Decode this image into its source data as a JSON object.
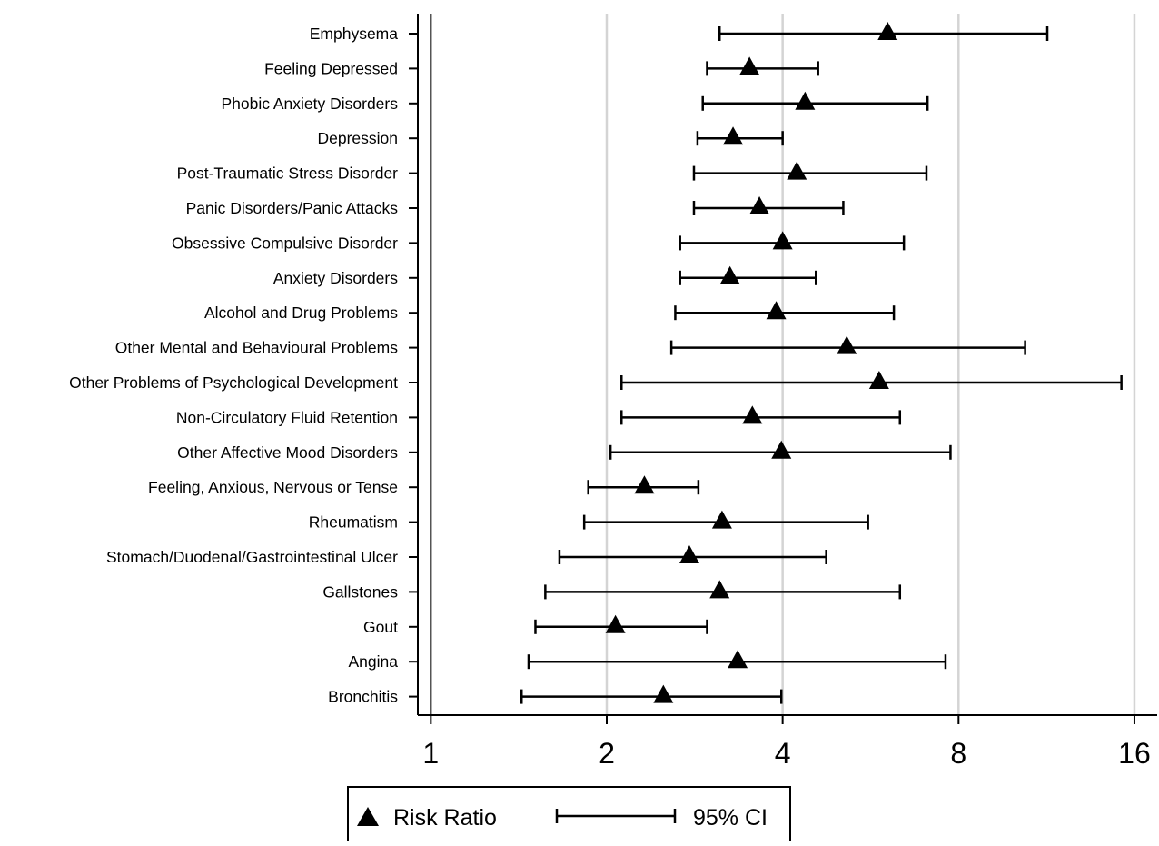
{
  "chart_data": {
    "type": "forest",
    "xscale": "log2",
    "xlim": [
      0.95,
      17.5
    ],
    "xticks": [
      1,
      2,
      4,
      8,
      16
    ],
    "xtick_labels": [
      "1",
      "2",
      "4",
      "8",
      "16"
    ],
    "reference_line": 1,
    "grid": true,
    "legend": {
      "placement": "bottom-left",
      "items": [
        {
          "label": "Risk Ratio",
          "marker": "triangle"
        },
        {
          "label": "95% CI",
          "marker": "errorbar"
        }
      ]
    },
    "series": [
      {
        "name": "Risk Ratio",
        "kind": "point"
      },
      {
        "name": "95% CI",
        "kind": "interval"
      }
    ],
    "categories": [
      "Emphysema",
      "Feeling Depressed",
      "Phobic Anxiety Disorders",
      "Depression",
      "Post-Traumatic Stress Disorder",
      "Panic Disorders/Panic Attacks",
      "Obsessive Compulsive Disorder",
      "Anxiety Disorders",
      "Alcohol and Drug Problems",
      "Other Mental and Behavioural Problems",
      "Other Problems of Psychological Development",
      "Non-Circulatory Fluid Retention",
      "Other Affective Mood Disorders",
      "Feeling, Anxious, Nervous or Tense",
      "Rheumatism",
      "Stomach/Duodenal/Gastrointestinal Ulcer",
      "Gallstones",
      "Gout",
      "Angina",
      "Bronchitis"
    ],
    "estimates": [
      6.05,
      3.51,
      4.37,
      3.29,
      4.23,
      3.65,
      4.0,
      3.25,
      3.9,
      5.15,
      5.85,
      3.55,
      3.98,
      2.32,
      3.15,
      2.77,
      3.12,
      2.07,
      3.35,
      2.5
    ],
    "ci_lower": [
      3.12,
      2.97,
      2.92,
      2.86,
      2.82,
      2.82,
      2.67,
      2.67,
      2.62,
      2.58,
      2.12,
      2.12,
      2.03,
      1.86,
      1.83,
      1.66,
      1.57,
      1.51,
      1.47,
      1.43
    ],
    "ci_upper": [
      11.35,
      4.6,
      7.08,
      4.0,
      7.05,
      5.08,
      6.45,
      4.56,
      6.2,
      10.4,
      15.2,
      6.35,
      7.75,
      2.87,
      5.6,
      4.75,
      6.35,
      2.97,
      7.6,
      3.98
    ]
  }
}
